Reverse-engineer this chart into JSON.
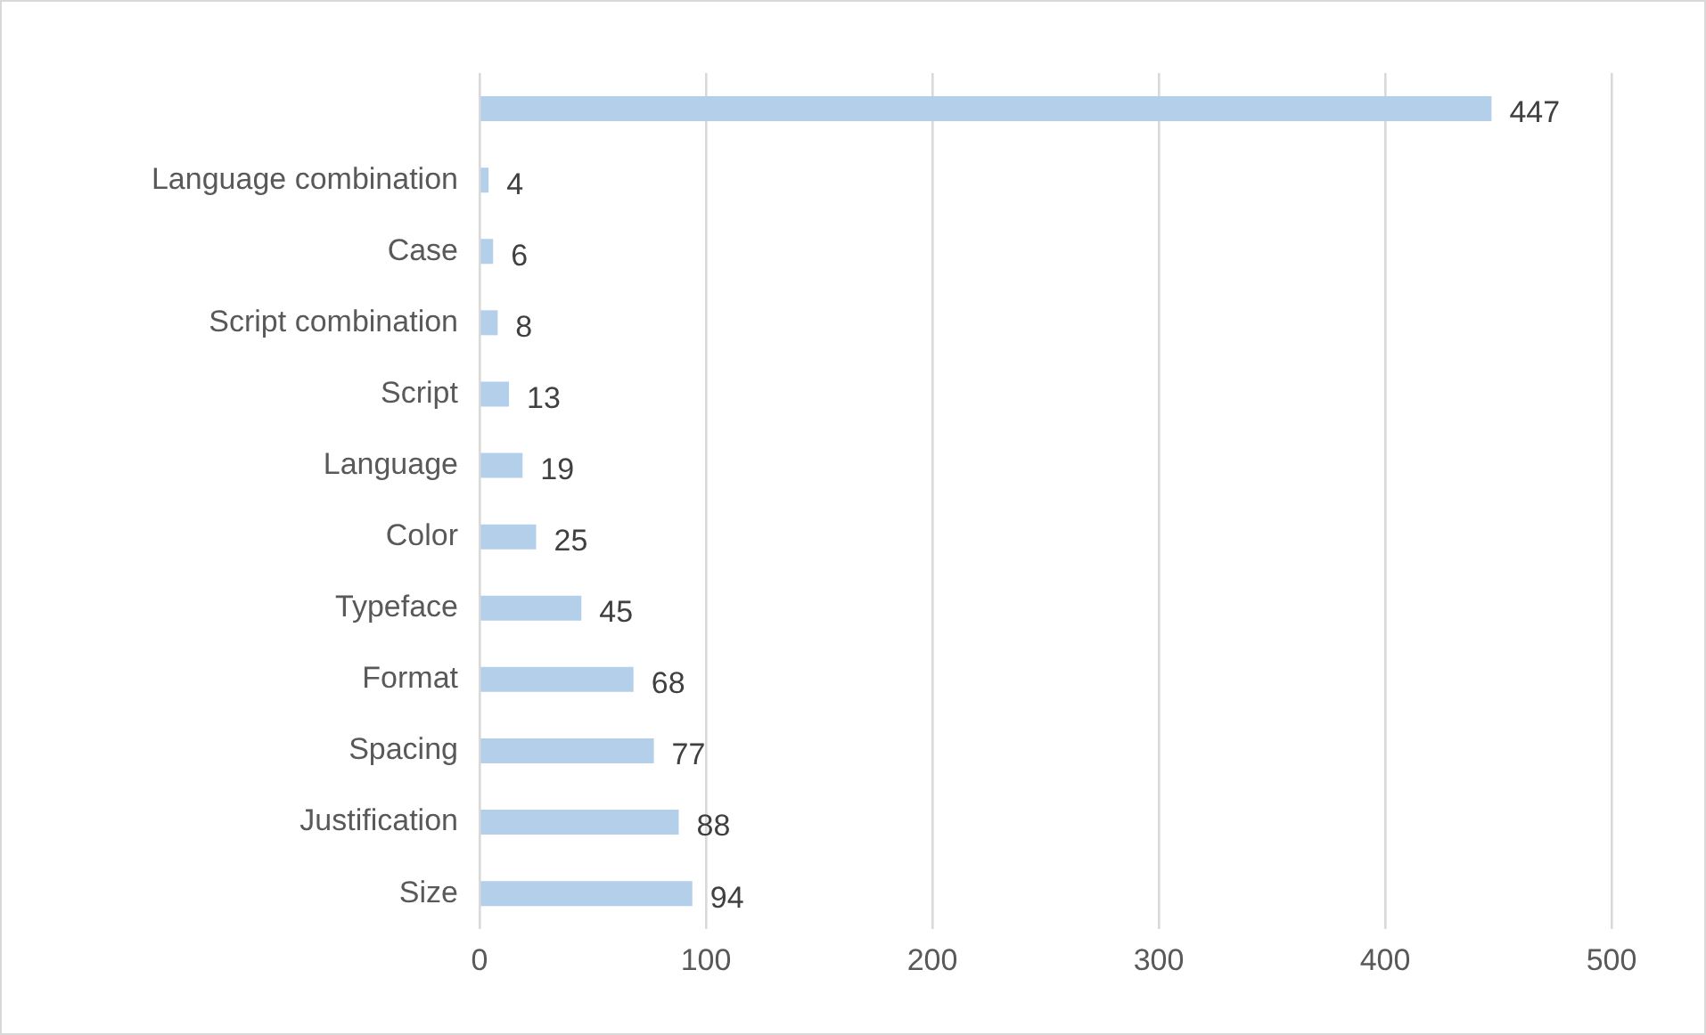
{
  "chart_data": {
    "type": "bar",
    "orientation": "horizontal",
    "categories": [
      null,
      "Language combination",
      "Case",
      "Script combination",
      "Script",
      "Language",
      "Color",
      "Typeface",
      "Format",
      "Spacing",
      "Justification",
      "Size"
    ],
    "values": [
      447,
      4,
      6,
      8,
      13,
      19,
      25,
      45,
      68,
      77,
      88,
      94
    ],
    "color": "#b4cfea",
    "xlim": [
      0,
      500
    ],
    "xticks": [
      0,
      100,
      200,
      300,
      400,
      500
    ],
    "grid": "x",
    "data_labels": true,
    "legend": false
  }
}
